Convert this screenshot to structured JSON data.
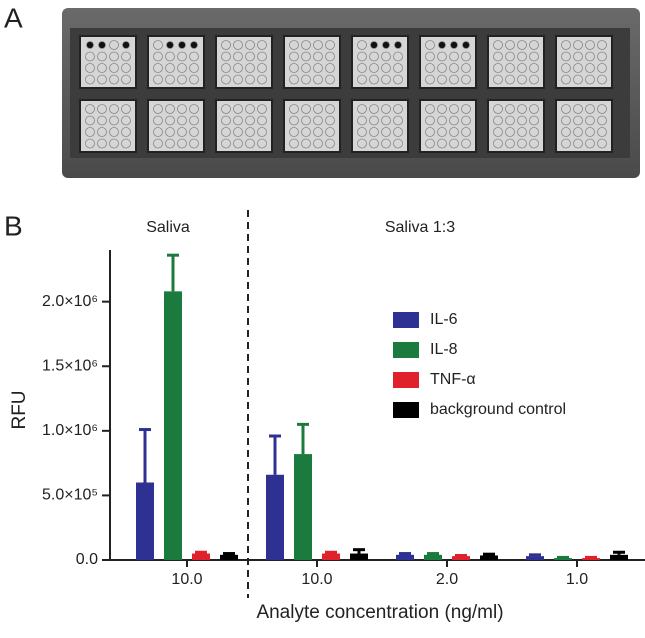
{
  "panel_labels": [
    "A",
    "B"
  ],
  "chart_data": {
    "type": "bar",
    "y_label": "RFU",
    "x_label": "Analyte concentration (ng/ml)",
    "group_labels": [
      "Saliva",
      "Saliva 1:3"
    ],
    "categories": [
      "10.0",
      "10.0",
      "2.0",
      "1.0"
    ],
    "ylim": [
      0,
      2400000
    ],
    "yticks": [
      {
        "value": 0,
        "label": "0.0"
      },
      {
        "value": 500000,
        "label": "5.0×10⁵"
      },
      {
        "value": 1000000,
        "label": "1.0×10⁶"
      },
      {
        "value": 1500000,
        "label": "1.5×10⁶"
      },
      {
        "value": 2000000,
        "label": "2.0×10⁶"
      }
    ],
    "legend": "upper right",
    "series": [
      {
        "name": "IL-6",
        "color": "#2e3192",
        "values": [
          600000,
          660000,
          40000,
          30000
        ],
        "errors": [
          410000,
          300000,
          10000,
          10000
        ]
      },
      {
        "name": "IL-8",
        "color": "#1b7a3e",
        "values": [
          2080000,
          820000,
          40000,
          15000
        ],
        "errors": [
          280000,
          230000,
          10000,
          5000
        ]
      },
      {
        "name": "TNF-α",
        "color": "#e0202a",
        "values": [
          50000,
          50000,
          30000,
          15000
        ],
        "errors": [
          10000,
          10000,
          5000,
          5000
        ]
      },
      {
        "name": "background control",
        "color": "#000000",
        "values": [
          40000,
          50000,
          35000,
          40000
        ],
        "errors": [
          10000,
          30000,
          10000,
          20000
        ]
      }
    ]
  }
}
